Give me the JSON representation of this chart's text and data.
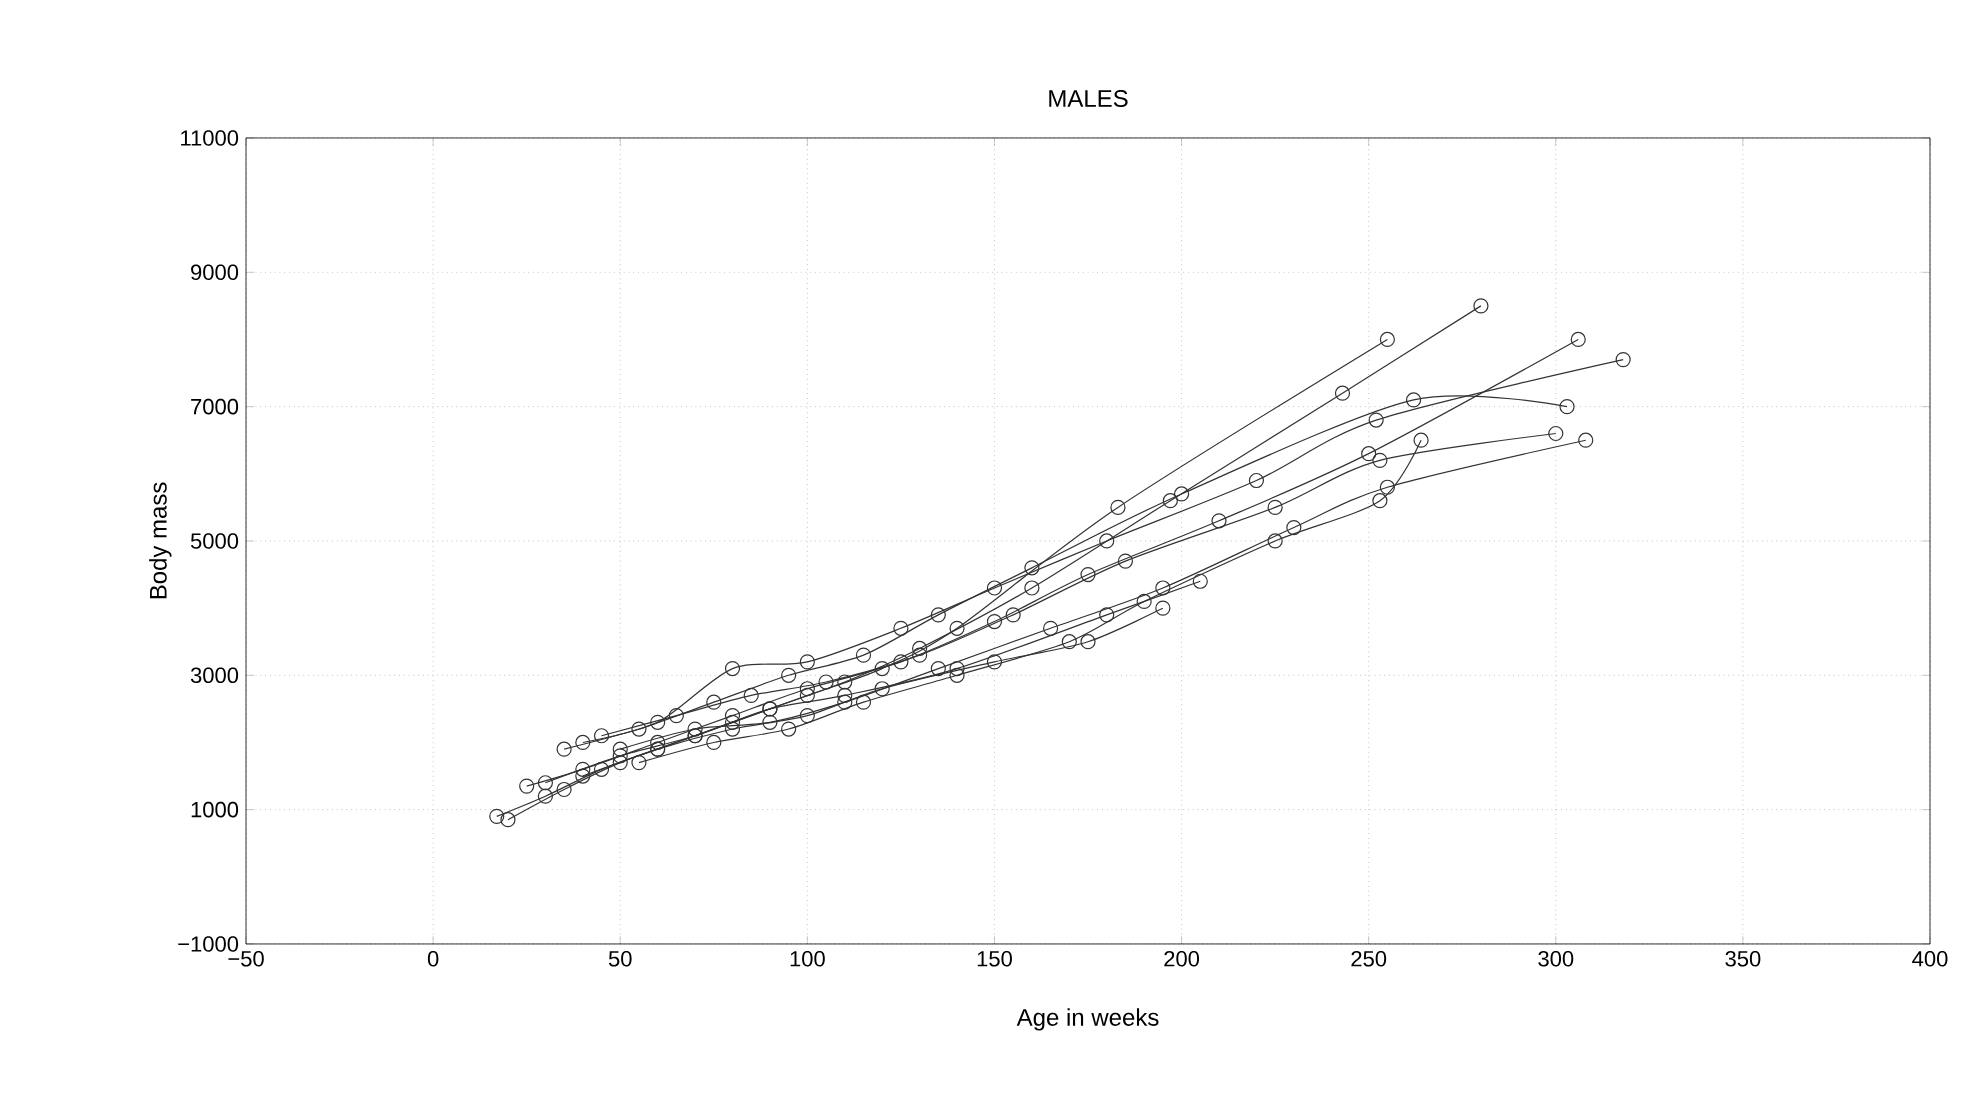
{
  "chart_data": {
    "type": "line",
    "title": "MALES",
    "xlabel": "Age in weeks",
    "ylabel": "Body mass",
    "xlim": [
      -50,
      400
    ],
    "ylim": [
      -1000,
      11000
    ],
    "xticks": [
      {
        "value": -50,
        "label": "−50"
      },
      0,
      50,
      100,
      150,
      200,
      250,
      300,
      350,
      400
    ],
    "yticks": [
      {
        "value": -1000,
        "label": "−1000"
      },
      1000,
      3000,
      5000,
      7000,
      9000,
      11000
    ],
    "grid": true,
    "marker": "circle",
    "series": [
      {
        "color": "#333333",
        "x": [
          17,
          30,
          45,
          60,
          80,
          100,
          120,
          140,
          183,
          255
        ],
        "values": [
          900,
          1200,
          1600,
          1900,
          2300,
          2700,
          3100,
          3700,
          5500,
          8000
        ]
      },
      {
        "color": "#333333",
        "x": [
          20,
          35,
          50,
          70,
          90,
          110,
          130,
          160,
          197,
          243,
          280
        ],
        "values": [
          850,
          1300,
          1700,
          2100,
          2500,
          2900,
          3400,
          4300,
          5600,
          7200,
          8500
        ]
      },
      {
        "color": "#333333",
        "x": [
          25,
          40,
          60,
          80,
          100,
          125,
          150,
          175,
          210,
          250,
          306
        ],
        "values": [
          1350,
          1600,
          2000,
          2400,
          2800,
          3200,
          3800,
          4500,
          5300,
          6300,
          8000
        ]
      },
      {
        "color": "#333333",
        "x": [
          35,
          55,
          75,
          95,
          115,
          135,
          160,
          200,
          262,
          303
        ],
        "values": [
          1900,
          2200,
          2600,
          3000,
          3300,
          3900,
          4600,
          5700,
          7100,
          7000
        ]
      },
      {
        "color": "#333333",
        "x": [
          40,
          60,
          80,
          100,
          125,
          150,
          180,
          220,
          252,
          318
        ],
        "values": [
          2000,
          2300,
          3100,
          3200,
          3700,
          4300,
          5000,
          5900,
          6800,
          7700
        ]
      },
      {
        "color": "#333333",
        "x": [
          45,
          65,
          85,
          105,
          130,
          155,
          185,
          225,
          253,
          300
        ],
        "values": [
          2100,
          2400,
          2700,
          2900,
          3300,
          3900,
          4700,
          5500,
          6200,
          6600
        ]
      },
      {
        "color": "#333333",
        "x": [
          50,
          70,
          90,
          110,
          135,
          165,
          195,
          230,
          255,
          308
        ],
        "values": [
          1900,
          2200,
          2300,
          2600,
          3100,
          3700,
          4300,
          5200,
          5800,
          6500
        ]
      },
      {
        "color": "#333333",
        "x": [
          55,
          75,
          95,
          115,
          140,
          170,
          190,
          225,
          253,
          264
        ],
        "values": [
          1700,
          2000,
          2200,
          2600,
          3000,
          3500,
          4100,
          5000,
          5600,
          6500
        ]
      },
      {
        "color": "#333333",
        "x": [
          30,
          50,
          70,
          90,
          110,
          140,
          180,
          205
        ],
        "values": [
          1400,
          1800,
          2100,
          2500,
          2700,
          3100,
          3900,
          4400
        ]
      },
      {
        "color": "#333333",
        "x": [
          40,
          60,
          80,
          100,
          120,
          150,
          175,
          195
        ],
        "values": [
          1500,
          1900,
          2200,
          2400,
          2800,
          3200,
          3500,
          4000
        ]
      }
    ]
  }
}
